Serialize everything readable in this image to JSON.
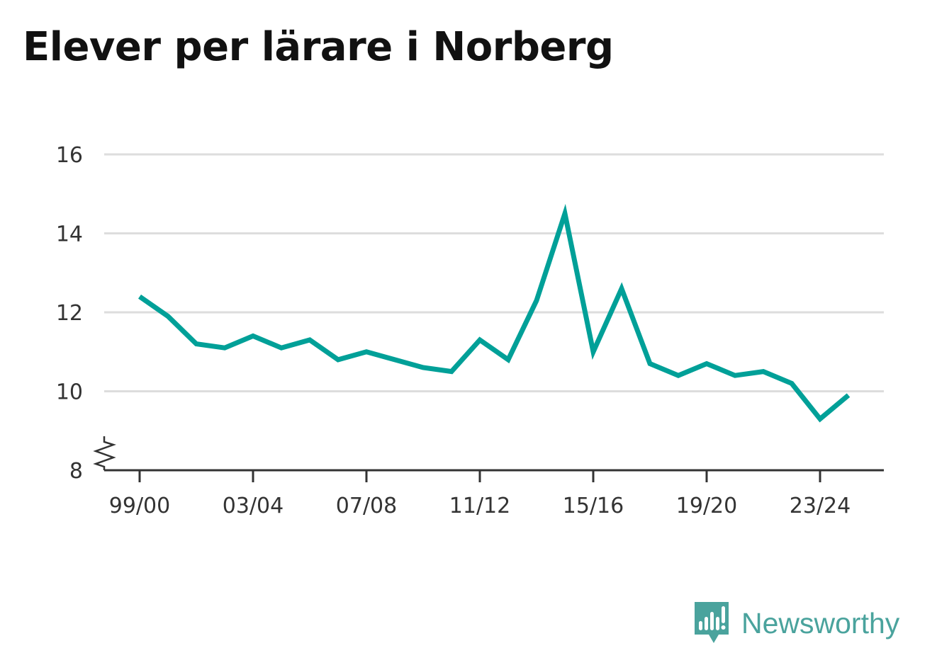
{
  "title": "Elever per lärare i Norberg",
  "brand": {
    "name": "Newsworthy",
    "logo_icon": "newsworthy-logo-icon"
  },
  "colors": {
    "line": "#00a098",
    "grid": "#dddddd",
    "axis": "#333333",
    "brand": "#4aa39d"
  },
  "chart_data": {
    "type": "line",
    "title": "Elever per lärare i Norberg",
    "xlabel": "",
    "ylabel": "",
    "ylim": [
      8,
      16
    ],
    "y_axis_break": true,
    "grid": "horizontal",
    "yticks": [
      8,
      10,
      12,
      14,
      16
    ],
    "xtick_labels": [
      "99/00",
      "03/04",
      "07/08",
      "11/12",
      "15/16",
      "19/20",
      "23/24"
    ],
    "categories": [
      "99/00",
      "00/01",
      "01/02",
      "02/03",
      "03/04",
      "04/05",
      "05/06",
      "06/07",
      "07/08",
      "08/09",
      "09/10",
      "10/11",
      "11/12",
      "12/13",
      "13/14",
      "14/15",
      "15/16",
      "16/17",
      "17/18",
      "18/19",
      "19/20",
      "20/21",
      "21/22",
      "22/23",
      "23/24",
      "24/25"
    ],
    "series": [
      {
        "values": [
          12.4,
          11.9,
          11.2,
          11.1,
          11.4,
          11.1,
          11.3,
          10.8,
          11.0,
          10.8,
          10.6,
          10.5,
          11.3,
          10.8,
          12.3,
          14.5,
          11.0,
          12.6,
          10.7,
          10.4,
          10.7,
          10.4,
          10.5,
          10.2,
          9.3,
          9.9
        ]
      }
    ]
  }
}
